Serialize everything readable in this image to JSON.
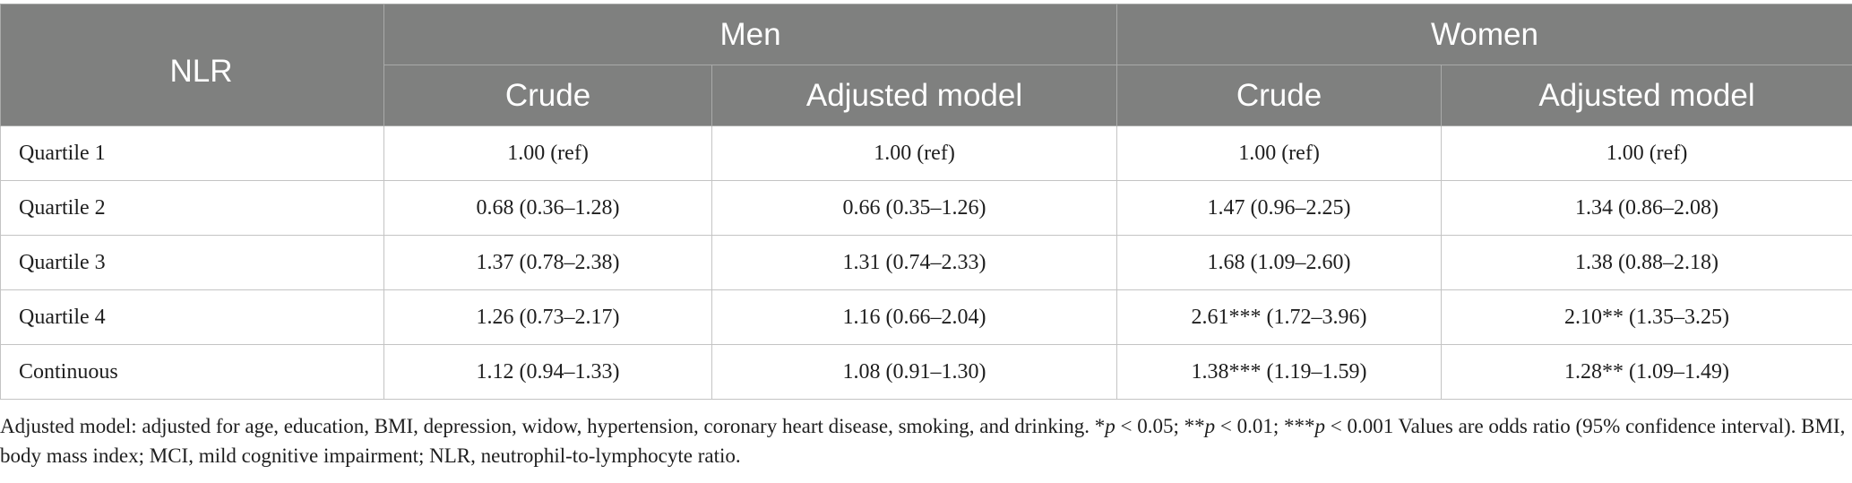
{
  "table": {
    "corner_label": "NLR",
    "groups": [
      "Men",
      "Women"
    ],
    "subheaders": [
      "Crude",
      "Adjusted model",
      "Crude",
      "Adjusted model"
    ],
    "rows": [
      {
        "label": "Quartile 1",
        "cells": [
          "1.00 (ref)",
          "1.00 (ref)",
          "1.00 (ref)",
          "1.00 (ref)"
        ]
      },
      {
        "label": "Quartile 2",
        "cells": [
          "0.68 (0.36–1.28)",
          "0.66 (0.35–1.26)",
          "1.47 (0.96–2.25)",
          "1.34 (0.86–2.08)"
        ]
      },
      {
        "label": "Quartile 3",
        "cells": [
          "1.37 (0.78–2.38)",
          "1.31 (0.74–2.33)",
          "1.68 (1.09–2.60)",
          "1.38 (0.88–2.18)"
        ]
      },
      {
        "label": "Quartile 4",
        "cells": [
          "1.26 (0.73–2.17)",
          "1.16 (0.66–2.04)",
          "2.61*** (1.72–3.96)",
          "2.10** (1.35–3.25)"
        ]
      },
      {
        "label": "Continuous",
        "cells": [
          "1.12 (0.94–1.33)",
          "1.08 (0.91–1.30)",
          "1.38*** (1.19–1.59)",
          "1.28** (1.09–1.49)"
        ]
      }
    ]
  },
  "footnote": {
    "part1": "Adjusted model: adjusted for age, education, BMI, depression, widow, hypertension, coronary heart disease, smoking, and drinking. *",
    "p1": "p",
    "part2": " < 0.05; **",
    "p2": "p",
    "part3": " < 0.01; ***",
    "p3": "p",
    "part4": " < 0.001 Values are odds ratio (95% confidence interval). BMI, body mass index; MCI, mild cognitive impairment; NLR, neutrophil-to-lymphocyte ratio."
  },
  "colors": {
    "header_bg": "#7f807f",
    "header_text": "#ffffff",
    "grid_line": "#c4c4c4",
    "body_text": "#1e1e1e"
  }
}
